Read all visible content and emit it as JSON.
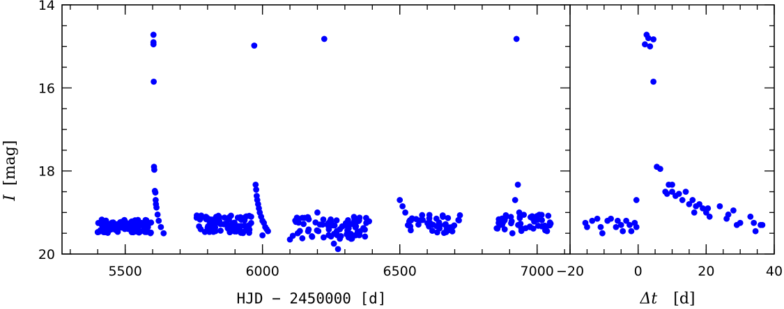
{
  "chart_data": [
    {
      "type": "scatter",
      "title": "",
      "xlabel": "HJD − 2450000 [d]",
      "ylabel_symbol": "I",
      "ylabel_unit": "[mag]",
      "xlim": [
        5270,
        7120
      ],
      "ylim": [
        20,
        14
      ],
      "y_inverted": true,
      "grid": false,
      "marker_color": "#0000ff",
      "xticks_major": [
        5500,
        6000,
        6500,
        7000
      ],
      "xtick_labels": [
        "5500",
        "6000",
        "6500",
        "7000"
      ],
      "xticks_minor_step": 100,
      "yticks_major": [
        14,
        16,
        18,
        20
      ],
      "ytick_labels": [
        "14",
        "16",
        "18",
        "20"
      ],
      "yticks_minor_step": 0.5,
      "clusters": [
        {
          "x": [
            5400,
            5595
          ],
          "y": [
            19.17,
            19.5
          ],
          "n": 95
        },
        {
          "x": [
            5760,
            5960
          ],
          "y": [
            19.07,
            19.5
          ],
          "n": 85
        },
        {
          "x": [
            6110,
            6390
          ],
          "y": [
            19.1,
            19.65
          ],
          "n": 80
        },
        {
          "x": [
            6520,
            6720
          ],
          "y": [
            19.05,
            19.5
          ],
          "n": 45
        },
        {
          "x": [
            6850,
            7050
          ],
          "y": [
            19.05,
            19.45
          ],
          "n": 45
        }
      ],
      "points": [
        {
          "x": 5603,
          "y": 14.72
        },
        {
          "x": 5603,
          "y": 14.9
        },
        {
          "x": 5603,
          "y": 14.95
        },
        {
          "x": 5604,
          "y": 15.85
        },
        {
          "x": 5605,
          "y": 17.9
        },
        {
          "x": 5606,
          "y": 17.97
        },
        {
          "x": 5608,
          "y": 18.48
        },
        {
          "x": 5610,
          "y": 18.52
        },
        {
          "x": 5611,
          "y": 18.7
        },
        {
          "x": 5612,
          "y": 18.8
        },
        {
          "x": 5614,
          "y": 18.88
        },
        {
          "x": 5618,
          "y": 19.05
        },
        {
          "x": 5622,
          "y": 19.2
        },
        {
          "x": 5630,
          "y": 19.35
        },
        {
          "x": 5640,
          "y": 19.5
        },
        {
          "x": 5970,
          "y": 14.98
        },
        {
          "x": 5975,
          "y": 18.33
        },
        {
          "x": 5977,
          "y": 18.45
        },
        {
          "x": 5979,
          "y": 18.6
        },
        {
          "x": 5981,
          "y": 18.7
        },
        {
          "x": 5984,
          "y": 18.8
        },
        {
          "x": 5987,
          "y": 18.9
        },
        {
          "x": 5990,
          "y": 19.0
        },
        {
          "x": 5995,
          "y": 19.1
        },
        {
          "x": 6000,
          "y": 19.2
        },
        {
          "x": 6005,
          "y": 19.25
        },
        {
          "x": 6010,
          "y": 19.35
        },
        {
          "x": 6015,
          "y": 19.4
        },
        {
          "x": 6020,
          "y": 19.45
        },
        {
          "x": 6000,
          "y": 19.55
        },
        {
          "x": 6225,
          "y": 14.82
        },
        {
          "x": 6100,
          "y": 19.65
        },
        {
          "x": 6260,
          "y": 19.75
        },
        {
          "x": 6275,
          "y": 19.88
        },
        {
          "x": 6200,
          "y": 19.0
        },
        {
          "x": 6500,
          "y": 18.7
        },
        {
          "x": 6510,
          "y": 18.85
        },
        {
          "x": 6520,
          "y": 19.0
        },
        {
          "x": 6925,
          "y": 14.82
        },
        {
          "x": 6930,
          "y": 18.33
        },
        {
          "x": 6920,
          "y": 18.7
        },
        {
          "x": 6935,
          "y": 19.0
        },
        {
          "x": 6860,
          "y": 19.25
        },
        {
          "x": 6910,
          "y": 19.5
        }
      ]
    },
    {
      "type": "scatter",
      "title": "",
      "xlabel_symbol": "Δt",
      "xlabel_unit": "[d]",
      "xlim": [
        -20,
        40
      ],
      "ylim": [
        20,
        14
      ],
      "y_inverted": true,
      "grid": false,
      "marker_color": "#0000ff",
      "xticks_major": [
        -20,
        0,
        20,
        40
      ],
      "xtick_labels": [
        "−20",
        "0",
        "20",
        "40"
      ],
      "xticks_minor_step": 5,
      "points": [
        {
          "x": -15.5,
          "y": 19.25
        },
        {
          "x": -15,
          "y": 19.35
        },
        {
          "x": -13.5,
          "y": 19.2
        },
        {
          "x": -12,
          "y": 19.15
        },
        {
          "x": -11,
          "y": 19.35
        },
        {
          "x": -10.5,
          "y": 19.5
        },
        {
          "x": -9,
          "y": 19.2
        },
        {
          "x": -8,
          "y": 19.15
        },
        {
          "x": -6.5,
          "y": 19.35
        },
        {
          "x": -6,
          "y": 19.2
        },
        {
          "x": -5,
          "y": 19.3
        },
        {
          "x": -4.5,
          "y": 19.45
        },
        {
          "x": -3.5,
          "y": 19.2
        },
        {
          "x": -2.5,
          "y": 19.3
        },
        {
          "x": -2,
          "y": 19.45
        },
        {
          "x": -1,
          "y": 19.25
        },
        {
          "x": -0.5,
          "y": 19.35
        },
        {
          "x": -0.5,
          "y": 18.7
        },
        {
          "x": 2,
          "y": 14.95
        },
        {
          "x": 2.5,
          "y": 14.72
        },
        {
          "x": 3,
          "y": 14.8
        },
        {
          "x": 3.5,
          "y": 15.0
        },
        {
          "x": 4.5,
          "y": 14.83
        },
        {
          "x": 4.5,
          "y": 15.85
        },
        {
          "x": 5.5,
          "y": 17.9
        },
        {
          "x": 6.5,
          "y": 17.95
        },
        {
          "x": 8,
          "y": 18.5
        },
        {
          "x": 8.5,
          "y": 18.55
        },
        {
          "x": 9,
          "y": 18.33
        },
        {
          "x": 10,
          "y": 18.5
        },
        {
          "x": 10,
          "y": 18.33
        },
        {
          "x": 11,
          "y": 18.6
        },
        {
          "x": 12,
          "y": 18.55
        },
        {
          "x": 13,
          "y": 18.7
        },
        {
          "x": 14,
          "y": 18.5
        },
        {
          "x": 15,
          "y": 18.8
        },
        {
          "x": 16,
          "y": 18.7
        },
        {
          "x": 16.5,
          "y": 19.0
        },
        {
          "x": 17,
          "y": 18.85
        },
        {
          "x": 18,
          "y": 18.8
        },
        {
          "x": 19,
          "y": 18.9
        },
        {
          "x": 20,
          "y": 19.0
        },
        {
          "x": 20.5,
          "y": 18.9
        },
        {
          "x": 21,
          "y": 19.1
        },
        {
          "x": 24,
          "y": 18.85
        },
        {
          "x": 26,
          "y": 19.15
        },
        {
          "x": 26.5,
          "y": 19.05
        },
        {
          "x": 28,
          "y": 18.95
        },
        {
          "x": 29,
          "y": 19.3
        },
        {
          "x": 30,
          "y": 19.25
        },
        {
          "x": 33,
          "y": 19.1
        },
        {
          "x": 34,
          "y": 19.25
        },
        {
          "x": 34.5,
          "y": 19.45
        },
        {
          "x": 36,
          "y": 19.3
        },
        {
          "x": 36.5,
          "y": 19.3
        }
      ]
    }
  ]
}
